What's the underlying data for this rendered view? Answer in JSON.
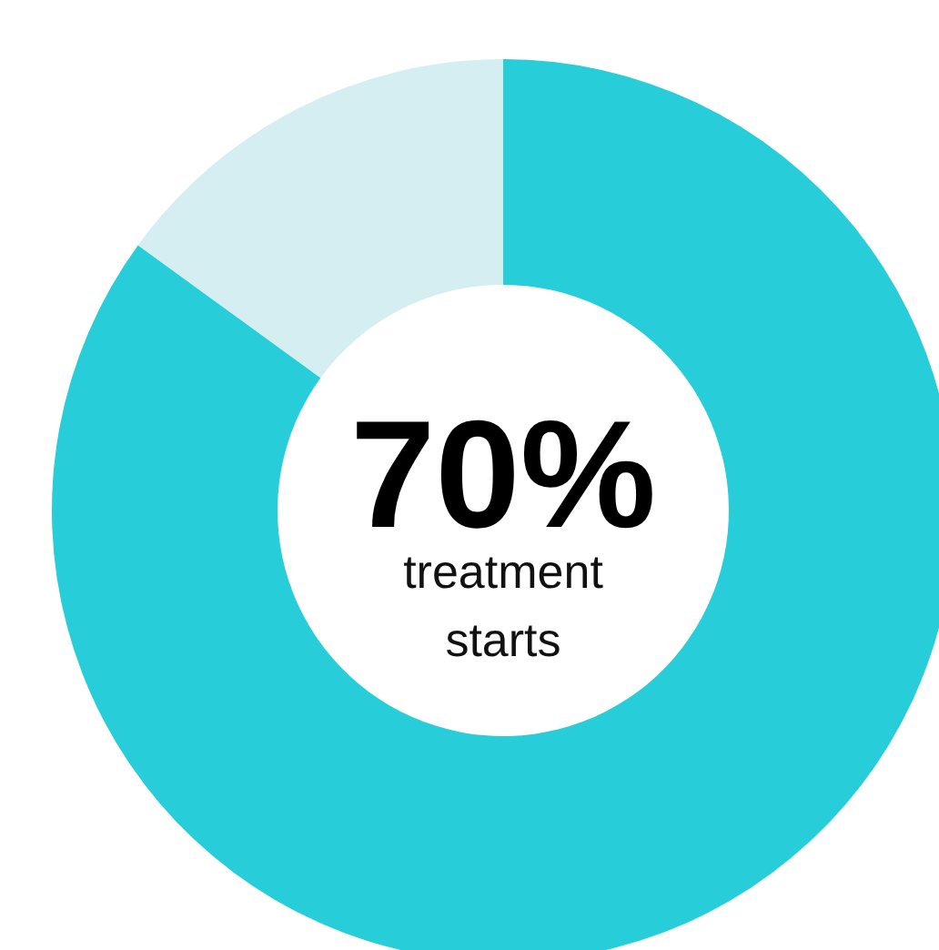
{
  "chart_data": {
    "type": "donut",
    "categories": [
      null,
      null
    ],
    "values": [
      85,
      15
    ],
    "colors": [
      "#27cdd8",
      "#d4eef1"
    ],
    "annotations": [
      "70%",
      "treatment starts"
    ]
  }
}
